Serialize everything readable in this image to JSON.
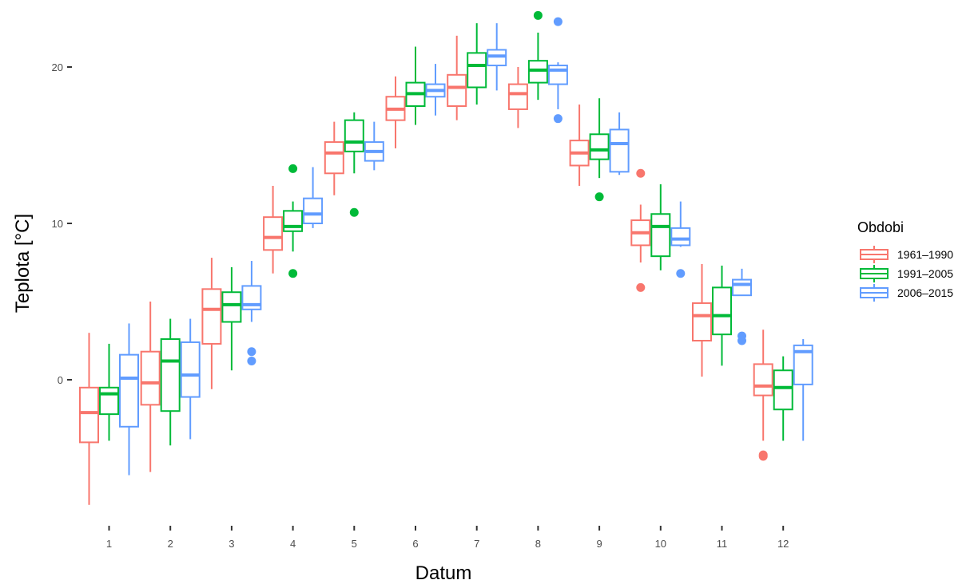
{
  "chart_data": {
    "type": "boxplot",
    "xlabel": "Datum",
    "ylabel": "Teplota [°C]",
    "ylim": [
      -8.5,
      23.5
    ],
    "y_ticks": [
      0,
      10,
      20
    ],
    "categories": [
      "1",
      "2",
      "3",
      "4",
      "5",
      "6",
      "7",
      "8",
      "9",
      "10",
      "11",
      "12"
    ],
    "grid": false,
    "legend": {
      "title": "Obdobi",
      "position": "right"
    },
    "series": [
      {
        "name": "1961–1990",
        "color": "#f8766d",
        "boxes": [
          {
            "min": -8.0,
            "q1": -4.0,
            "median": -2.1,
            "q3": -0.5,
            "max": 3.0,
            "outliers": []
          },
          {
            "min": -5.9,
            "q1": -1.6,
            "median": -0.2,
            "q3": 1.8,
            "max": 5.0,
            "outliers": []
          },
          {
            "min": -0.6,
            "q1": 2.3,
            "median": 4.5,
            "q3": 5.8,
            "max": 7.8,
            "outliers": []
          },
          {
            "min": 6.8,
            "q1": 8.3,
            "median": 9.1,
            "q3": 10.4,
            "max": 12.4,
            "outliers": []
          },
          {
            "min": 11.8,
            "q1": 13.2,
            "median": 14.5,
            "q3": 15.2,
            "max": 16.5,
            "outliers": []
          },
          {
            "min": 14.8,
            "q1": 16.6,
            "median": 17.3,
            "q3": 18.1,
            "max": 19.4,
            "outliers": []
          },
          {
            "min": 16.6,
            "q1": 17.5,
            "median": 18.7,
            "q3": 19.5,
            "max": 22.0,
            "outliers": []
          },
          {
            "min": 16.1,
            "q1": 17.3,
            "median": 18.3,
            "q3": 18.9,
            "max": 20.0,
            "outliers": []
          },
          {
            "min": 12.4,
            "q1": 13.7,
            "median": 14.5,
            "q3": 15.3,
            "max": 17.6,
            "outliers": []
          },
          {
            "min": 7.5,
            "q1": 8.6,
            "median": 9.4,
            "q3": 10.2,
            "max": 11.2,
            "outliers": [
              13.2,
              5.9
            ]
          },
          {
            "min": 0.2,
            "q1": 2.5,
            "median": 4.1,
            "q3": 4.9,
            "max": 7.4,
            "outliers": []
          },
          {
            "min": -3.9,
            "q1": -1.0,
            "median": -0.4,
            "q3": 1.0,
            "max": 3.2,
            "outliers": [
              -4.8,
              -4.9
            ]
          }
        ]
      },
      {
        "name": "1991–2005",
        "color": "#00ba38",
        "boxes": [
          {
            "min": -3.9,
            "q1": -2.2,
            "median": -0.9,
            "q3": -0.5,
            "max": 2.3,
            "outliers": []
          },
          {
            "min": -4.2,
            "q1": -2.0,
            "median": 1.2,
            "q3": 2.6,
            "max": 3.9,
            "outliers": []
          },
          {
            "min": 0.6,
            "q1": 3.7,
            "median": 4.8,
            "q3": 5.6,
            "max": 7.2,
            "outliers": []
          },
          {
            "min": 8.2,
            "q1": 9.5,
            "median": 9.8,
            "q3": 10.8,
            "max": 11.4,
            "outliers": [
              13.5,
              6.8
            ]
          },
          {
            "min": 13.2,
            "q1": 14.6,
            "median": 15.2,
            "q3": 16.6,
            "max": 17.1,
            "outliers": [
              10.7
            ]
          },
          {
            "min": 16.3,
            "q1": 17.5,
            "median": 18.3,
            "q3": 19.0,
            "max": 21.3,
            "outliers": []
          },
          {
            "min": 17.6,
            "q1": 18.7,
            "median": 20.1,
            "q3": 20.9,
            "max": 22.8,
            "outliers": []
          },
          {
            "min": 17.9,
            "q1": 19.0,
            "median": 19.8,
            "q3": 20.4,
            "max": 22.2,
            "outliers": [
              23.3
            ]
          },
          {
            "min": 12.9,
            "q1": 14.1,
            "median": 14.7,
            "q3": 15.7,
            "max": 18.0,
            "outliers": [
              11.7
            ]
          },
          {
            "min": 7.0,
            "q1": 7.9,
            "median": 9.8,
            "q3": 10.6,
            "max": 12.5,
            "outliers": []
          },
          {
            "min": 0.9,
            "q1": 2.9,
            "median": 4.1,
            "q3": 5.9,
            "max": 7.3,
            "outliers": []
          },
          {
            "min": -3.9,
            "q1": -1.9,
            "median": -0.5,
            "q3": 0.6,
            "max": 1.5,
            "outliers": []
          }
        ]
      },
      {
        "name": "2006–2015",
        "color": "#619cff",
        "boxes": [
          {
            "min": -6.1,
            "q1": -3.0,
            "median": 0.1,
            "q3": 1.6,
            "max": 3.6,
            "outliers": []
          },
          {
            "min": -3.8,
            "q1": -1.1,
            "median": 0.3,
            "q3": 2.4,
            "max": 3.9,
            "outliers": []
          },
          {
            "min": 3.7,
            "q1": 4.5,
            "median": 4.8,
            "q3": 6.0,
            "max": 7.6,
            "outliers": [
              1.8,
              1.2
            ]
          },
          {
            "min": 9.7,
            "q1": 10.0,
            "median": 10.6,
            "q3": 11.6,
            "max": 13.6,
            "outliers": []
          },
          {
            "min": 13.4,
            "q1": 14.0,
            "median": 14.6,
            "q3": 15.2,
            "max": 16.5,
            "outliers": []
          },
          {
            "min": 16.9,
            "q1": 18.1,
            "median": 18.5,
            "q3": 18.9,
            "max": 20.2,
            "outliers": []
          },
          {
            "min": 18.5,
            "q1": 20.1,
            "median": 20.7,
            "q3": 21.1,
            "max": 22.8,
            "outliers": []
          },
          {
            "min": 17.3,
            "q1": 18.9,
            "median": 19.8,
            "q3": 20.1,
            "max": 20.3,
            "outliers": [
              22.9,
              16.7
            ]
          },
          {
            "min": 13.1,
            "q1": 13.3,
            "median": 15.1,
            "q3": 16.0,
            "max": 17.1,
            "outliers": []
          },
          {
            "min": 8.5,
            "q1": 8.6,
            "median": 9.0,
            "q3": 9.7,
            "max": 11.4,
            "outliers": [
              6.8
            ]
          },
          {
            "min": 5.4,
            "q1": 5.4,
            "median": 6.1,
            "q3": 6.4,
            "max": 7.1,
            "outliers": [
              2.8,
              2.5
            ]
          },
          {
            "min": -3.9,
            "q1": -0.3,
            "median": 1.8,
            "q3": 2.2,
            "max": 2.6,
            "outliers": []
          }
        ]
      }
    ]
  }
}
